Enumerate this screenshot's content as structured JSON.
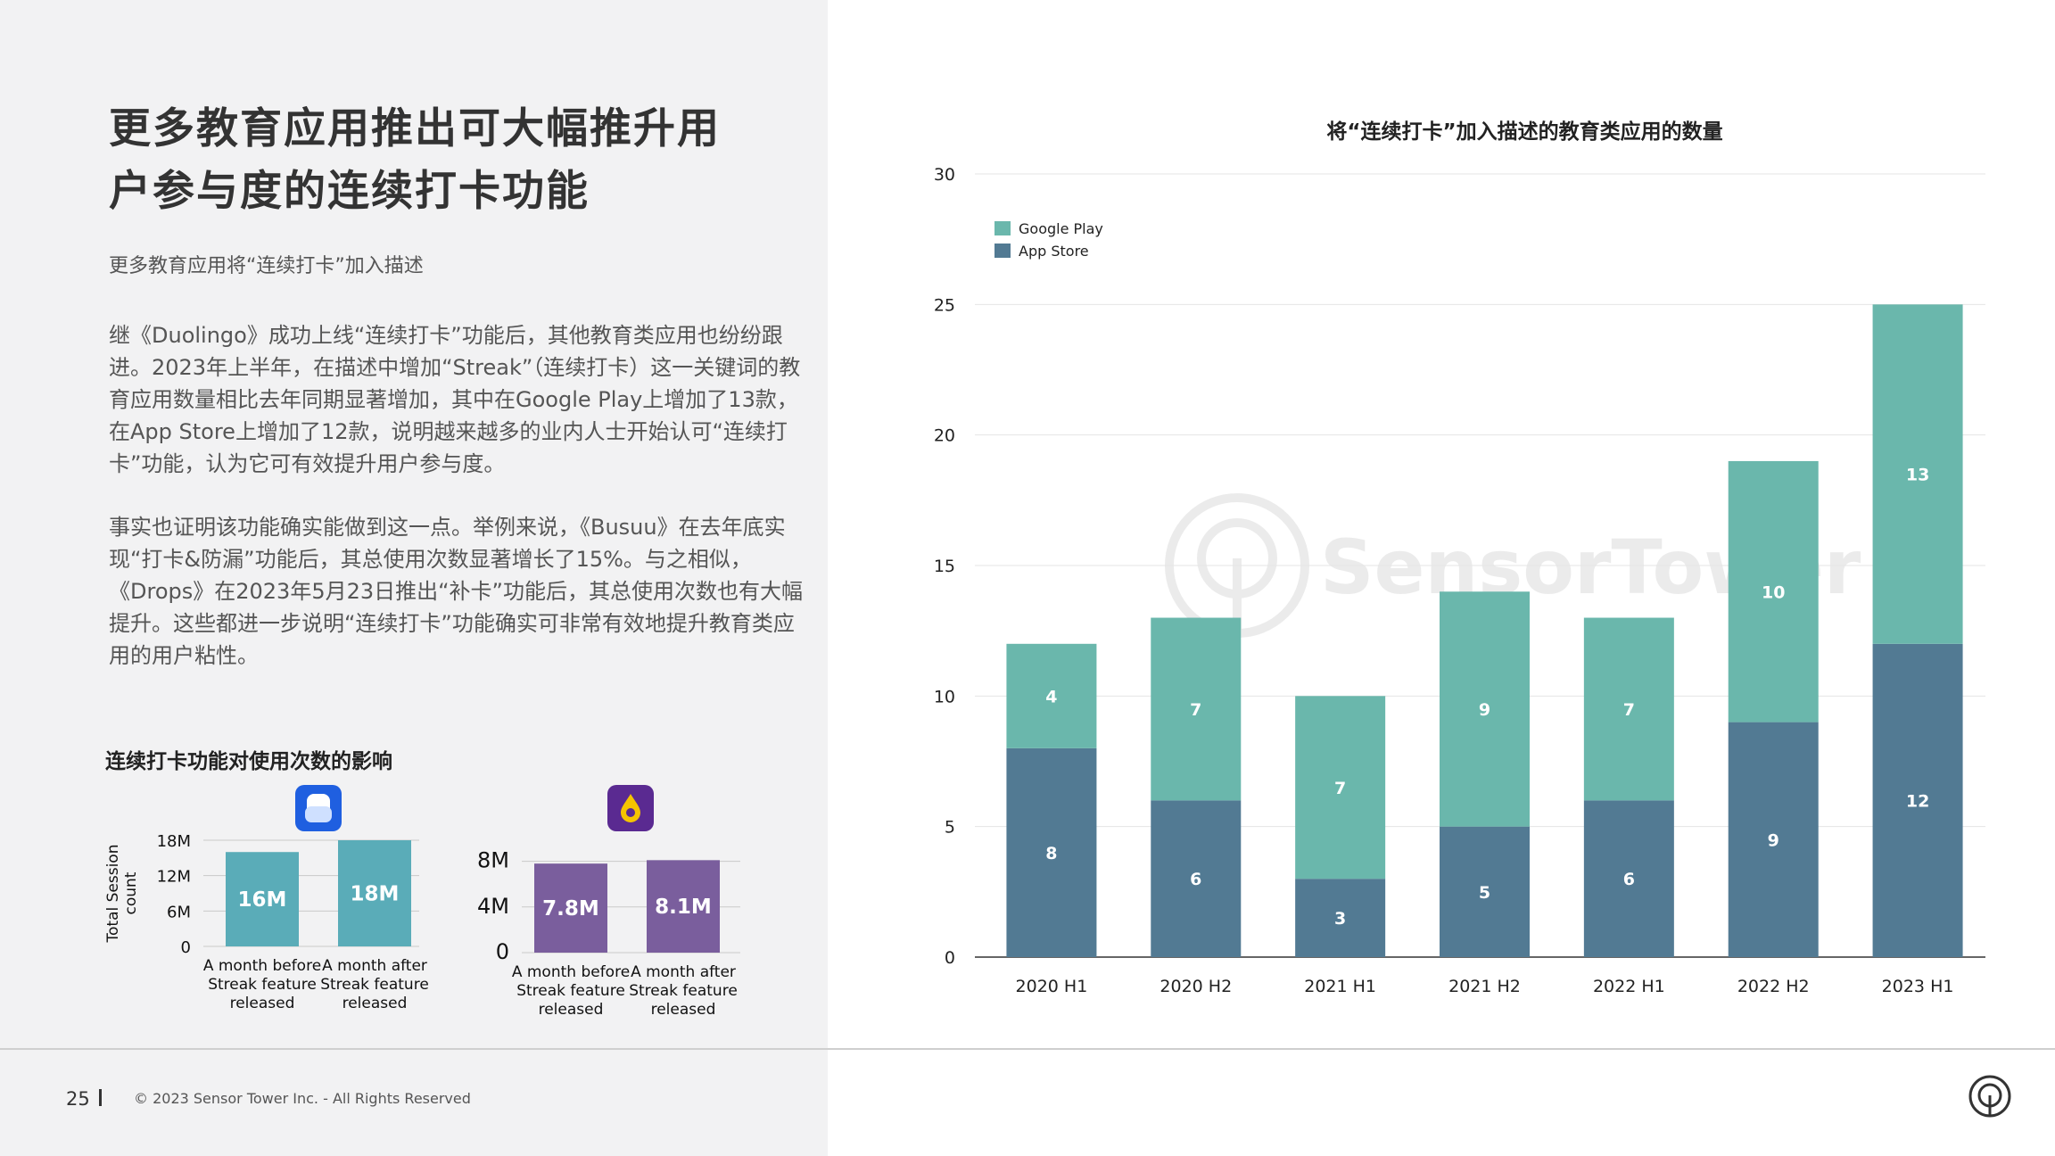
{
  "left": {
    "title_line1": "更多教育应用推出可大幅推升用",
    "title_line2": "户参与度的连续打卡功能",
    "subtitle": "更多教育应用将“连续打卡”加入描述",
    "paragraph1": "继《Duolingo》成功上线“连续打卡”功能后，其他教育类应用也纷纷跟进。2023年上半年，在描述中增加“Streak”（连续打卡）这一关键词的教育应用数量相比去年同期显著增加，其中在Google Play上增加了13款，在App Store上增加了12款，说明越来越多的业内人士开始认可“连续打卡”功能，认为它可有效提升用户参与度。",
    "paragraph2": "事实也证明该功能确实能做到这一点。举例来说，《Busuu》在去年底实现“打卡&防漏”功能后，其总使用次数显著增长了15%。与之相似，《Drops》在2023年5月23日推出“补卡”功能后，其总使用次数也有大幅提升。这些都进一步说明“连续打卡”功能确实可非常有效地提升教育类应用的用户粘性。",
    "small_chart_title": "连续打卡功能对使用次数的影响"
  },
  "footer": {
    "page_number": "25",
    "copyright": "© 2023 Sensor Tower Inc. - All Rights Reserved"
  },
  "watermark": "SensorTower",
  "colors": {
    "google_play": "#6ab7ac",
    "app_store": "#527a93",
    "busuu_bar": "#5aacb8",
    "drops_bar": "#7a5e9d",
    "grid": "#e4e4e4"
  },
  "chart_data": [
    {
      "type": "bar",
      "stacked": true,
      "title": "将“连续打卡”加入描述的教育类应用的数量",
      "categories": [
        "2020 H1",
        "2020 H2",
        "2021 H1",
        "2021 H2",
        "2022 H1",
        "2022 H2",
        "2023 H1"
      ],
      "series": [
        {
          "name": "App Store",
          "values": [
            8,
            6,
            3,
            5,
            6,
            9,
            12
          ]
        },
        {
          "name": "Google Play",
          "values": [
            4,
            7,
            7,
            9,
            7,
            10,
            13
          ]
        }
      ],
      "ylim": [
        0,
        30
      ],
      "yticks": [
        0,
        5,
        10,
        15,
        20,
        25,
        30
      ],
      "legend_order": [
        "Google Play",
        "App Store"
      ],
      "legend": "top-left",
      "grid": true
    },
    {
      "type": "bar",
      "app_icon": "busuu-icon",
      "ylabel": "Total Session count",
      "categories": [
        "A month before Streak feature released",
        "A month after Streak feature released"
      ],
      "values": [
        16,
        18
      ],
      "value_labels": [
        "16M",
        "18M"
      ],
      "ylim": [
        0,
        18
      ],
      "yticks": [
        "0",
        "6M",
        "12M",
        "18M"
      ],
      "grid": true
    },
    {
      "type": "bar",
      "app_icon": "drops-icon",
      "categories": [
        "A month before Streak feature released",
        "A month after Streak feature released"
      ],
      "values": [
        7.8,
        8.1
      ],
      "value_labels": [
        "7.8M",
        "8.1M"
      ],
      "ylim": [
        0,
        10
      ],
      "yticks": [
        "0",
        "4M",
        "8M"
      ],
      "grid": true
    }
  ]
}
